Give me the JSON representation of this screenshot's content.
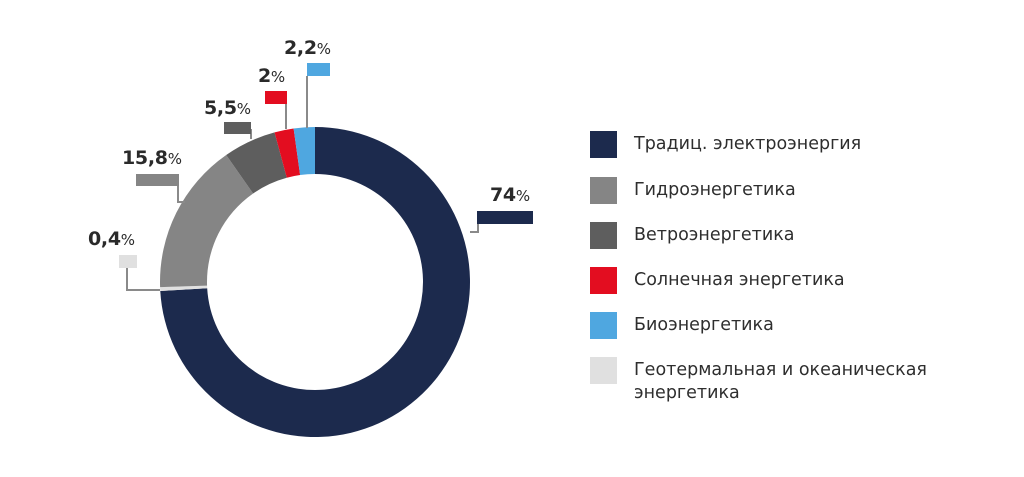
{
  "chart_data": {
    "type": "pie",
    "subtype": "donut",
    "title": "",
    "categories": [
      "Традиц. электроэнергия",
      "Гидроэнергетика",
      "Ветроэнергетика",
      "Солнечная энергетика",
      "Биоэнергетика",
      "Геотермальная и океаническая энергетика"
    ],
    "values": [
      74,
      15.8,
      5.5,
      2,
      2.2,
      0.4
    ],
    "unit": "%",
    "colors": [
      "#1c2a4d",
      "#858585",
      "#5e5e5e",
      "#e30d20",
      "#4fa7e0",
      "#e0e0e0"
    ],
    "legend_position": "right"
  },
  "labels": {
    "trad": {
      "value": "74",
      "unit": "%"
    },
    "hydro": {
      "value": "15,8",
      "unit": "%"
    },
    "wind": {
      "value": "5,5",
      "unit": "%"
    },
    "solar": {
      "value": "2",
      "unit": "%"
    },
    "bio": {
      "value": "2,2",
      "unit": "%"
    },
    "geo": {
      "value": "0,4",
      "unit": "%"
    }
  },
  "legend": {
    "items": [
      {
        "label": "Традиц. электроэнергия",
        "color": "#1c2a4d"
      },
      {
        "label": "Гидроэнергетика",
        "color": "#858585"
      },
      {
        "label": "Ветроэнергетика",
        "color": "#5e5e5e"
      },
      {
        "label": "Солнечная энергетика",
        "color": "#e30d20"
      },
      {
        "label": "Биоэнергетика",
        "color": "#4fa7e0"
      },
      {
        "label": "Геотермальная и океаническая энергетика",
        "color": "#e0e0e0"
      }
    ]
  }
}
